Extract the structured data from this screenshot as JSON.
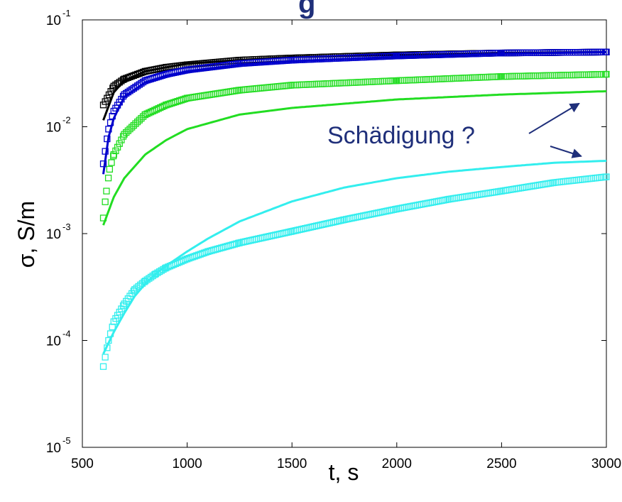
{
  "chart_data": {
    "type": "scatter",
    "title": "",
    "xlabel": "t, s",
    "ylabel": "σ, S/m",
    "xlim": [
      500,
      3000
    ],
    "ylim": [
      1e-05,
      0.1
    ],
    "yscale": "log",
    "grid": false,
    "x_ticks": [
      "500",
      "1000",
      "1500",
      "2000",
      "2500",
      "3000"
    ],
    "y_ticks": [
      {
        "base": "10",
        "exp": "-5"
      },
      {
        "base": "10",
        "exp": "-4"
      },
      {
        "base": "10",
        "exp": "-3"
      },
      {
        "base": "10",
        "exp": "-2"
      },
      {
        "base": "10",
        "exp": "-1"
      }
    ],
    "series": [
      {
        "color": "#000000",
        "marker": "square",
        "x": [
          600,
          650,
          700,
          800,
          900,
          1000,
          1250,
          1500,
          2000,
          2500,
          3000
        ],
        "y": [
          0.016,
          0.024,
          0.028,
          0.033,
          0.036,
          0.038,
          0.042,
          0.044,
          0.047,
          0.049,
          0.05
        ]
      },
      {
        "color": "#000000",
        "marker": "line",
        "x": [
          600,
          650,
          700,
          800,
          900,
          1000,
          1250,
          1500,
          2000,
          2500,
          3000
        ],
        "y": [
          0.0115,
          0.021,
          0.027,
          0.033,
          0.036,
          0.039,
          0.042,
          0.045,
          0.047,
          0.049,
          0.05
        ]
      },
      {
        "color": "#0000cc",
        "marker": "square",
        "x": [
          600,
          625,
          650,
          700,
          800,
          900,
          1000,
          1250,
          1500,
          2000,
          2500,
          3000
        ],
        "y": [
          0.0045,
          0.0095,
          0.014,
          0.02,
          0.027,
          0.031,
          0.034,
          0.039,
          0.042,
          0.046,
          0.049,
          0.05
        ]
      },
      {
        "color": "#0000cc",
        "marker": "line",
        "x": [
          600,
          625,
          650,
          700,
          800,
          900,
          1000,
          1250,
          1500,
          2000,
          2500,
          3000
        ],
        "y": [
          0.0036,
          0.008,
          0.012,
          0.019,
          0.026,
          0.03,
          0.033,
          0.038,
          0.041,
          0.045,
          0.048,
          0.05
        ]
      },
      {
        "color": "#22dd22",
        "marker": "square",
        "x": [
          600,
          615,
          630,
          650,
          700,
          800,
          900,
          1000,
          1250,
          1500,
          2000,
          2500,
          3000
        ],
        "y": [
          0.0014,
          0.0025,
          0.004,
          0.0055,
          0.0085,
          0.013,
          0.016,
          0.0185,
          0.022,
          0.0245,
          0.027,
          0.0295,
          0.031
        ]
      },
      {
        "color": "#22dd22",
        "marker": "line",
        "x": [
          600,
          650,
          700,
          800,
          900,
          1000,
          1250,
          1500,
          2000,
          2500,
          3000
        ],
        "y": [
          0.0012,
          0.0022,
          0.0033,
          0.0055,
          0.0075,
          0.0095,
          0.013,
          0.015,
          0.018,
          0.02,
          0.0215
        ]
      },
      {
        "color": "#33eeee",
        "marker": "square",
        "x": [
          600,
          625,
          650,
          700,
          750,
          800,
          850,
          900,
          1000,
          1100,
          1250,
          1500,
          1750,
          2000,
          2250,
          2500,
          2750,
          3000
        ],
        "y": [
          5.7e-05,
          0.0001,
          0.00015,
          0.00022,
          0.0003,
          0.00036,
          0.00042,
          0.00048,
          0.00058,
          0.00068,
          0.00082,
          0.00105,
          0.00135,
          0.0017,
          0.0021,
          0.0025,
          0.003,
          0.0034
        ]
      },
      {
        "color": "#33eeee",
        "marker": "line",
        "x": [
          600,
          650,
          700,
          750,
          800,
          850,
          900,
          1000,
          1100,
          1250,
          1500,
          1750,
          2000,
          2250,
          2500,
          2750,
          3000
        ],
        "y": [
          7.5e-05,
          0.00012,
          0.00018,
          0.00026,
          0.00034,
          0.00042,
          0.0005,
          0.00068,
          0.0009,
          0.0013,
          0.002,
          0.0027,
          0.0033,
          0.0038,
          0.0042,
          0.0046,
          0.0048
        ]
      }
    ],
    "annotations": [
      {
        "text": "Schädigung ?",
        "arrows_to": [
          {
            "x": 2870,
            "y": 0.0165
          },
          {
            "x": 2880,
            "y": 0.0053
          }
        ]
      }
    ],
    "partial_title": "g"
  }
}
